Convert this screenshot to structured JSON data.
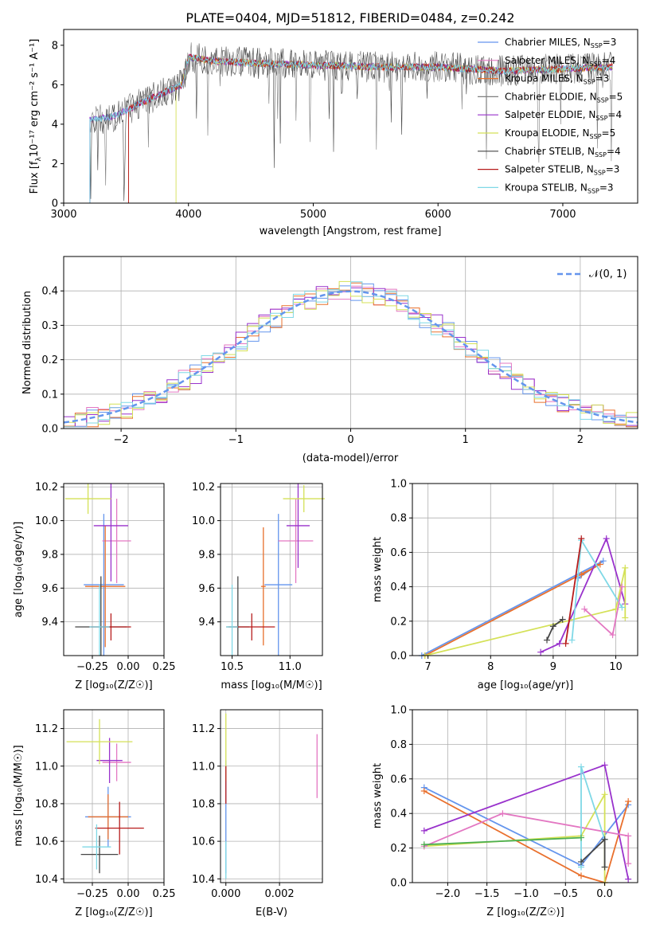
{
  "figure_title": "PLATE=0404, MJD=51812, FIBERID=0484, z=0.242",
  "colors": [
    "#6495ed",
    "#9932cc",
    "#e9702d",
    "#808080",
    "#8e24aa",
    "#d4e157",
    "#454545",
    "#b71c1c",
    "#7fd8e6",
    "#e67ab8",
    "#c7e06a"
  ],
  "legend_entries": [
    {
      "name": "Chabrier MILES, N",
      "sub": "SSP",
      "suffix": "=3",
      "color": "#6495ed"
    },
    {
      "name": "Salpeter MILES, N",
      "sub": "SSP",
      "suffix": "=4",
      "color": "#e377c2"
    },
    {
      "name": "Kroupa MILES, N",
      "sub": "SSP",
      "suffix": "=3",
      "color": "#e9702d"
    },
    {
      "name": "Chabrier ELODIE, N",
      "sub": "SSP",
      "suffix": "=5",
      "color": "#7f7f7f"
    },
    {
      "name": "Salpeter ELODIE, N",
      "sub": "SSP",
      "suffix": "=4",
      "color": "#9932cc"
    },
    {
      "name": "Kroupa ELODIE, N",
      "sub": "SSP",
      "suffix": "=5",
      "color": "#d4e157"
    },
    {
      "name": "Chabrier STELIB, N",
      "sub": "SSP",
      "suffix": "=4",
      "color": "#454545"
    },
    {
      "name": "Salpeter STELIB, N",
      "sub": "SSP",
      "suffix": "=3",
      "color": "#b71c1c"
    },
    {
      "name": "Kroupa STELIB, N",
      "sub": "SSP",
      "suffix": "=3",
      "color": "#7fd8e6"
    }
  ],
  "chart_data": [
    {
      "id": "spectrum",
      "type": "line",
      "title": "PLATE=0404, MJD=51812, FIBERID=0484, z=0.242",
      "xlabel": "wavelength [Angstrom, rest frame]",
      "ylabel": "Flux [f",
      "ylabel_sub": "λ",
      "ylabel_rest": "10⁻¹⁷ erg cm⁻² s⁻¹ A⁻¹]",
      "xlim": [
        3000,
        7600
      ],
      "ylim": [
        0,
        8.8
      ],
      "xticks": [
        "3000",
        "4000",
        "5000",
        "6000",
        "7000"
      ],
      "yticks": [
        "0",
        "2",
        "4",
        "6",
        "8"
      ],
      "grid": false,
      "legend_position": "top-right",
      "continuum_points": [
        [
          3200,
          4.2
        ],
        [
          3400,
          4.4
        ],
        [
          3600,
          5.0
        ],
        [
          3800,
          5.6
        ],
        [
          3950,
          6.0
        ],
        [
          4000,
          7.4
        ],
        [
          4200,
          7.2
        ],
        [
          4500,
          7.1
        ],
        [
          5000,
          7.0
        ],
        [
          5500,
          6.9
        ],
        [
          6000,
          6.9
        ],
        [
          6500,
          6.7
        ],
        [
          7000,
          6.8
        ],
        [
          7400,
          6.9
        ]
      ]
    },
    {
      "id": "residuals",
      "type": "area",
      "xlabel": "(data-model)/error",
      "ylabel": "Normed distribution",
      "xlim": [
        -2.5,
        2.5
      ],
      "ylim": [
        0,
        0.5
      ],
      "xticks": [
        "−2",
        "−1",
        "0",
        "1",
        "2"
      ],
      "yticks": [
        "0.0",
        "0.1",
        "0.2",
        "0.3",
        "0.4"
      ],
      "grid": true,
      "legend_position": "top-right",
      "legend_label": "𝒩(0, 1)",
      "series": [
        {
          "name": "𝒩(0, 1)",
          "style": "dashed",
          "mu": 0,
          "sigma": 1
        }
      ]
    },
    {
      "id": "age-vs-Z",
      "type": "scatter",
      "xlabel": "Z [log₁₀(Z/Z☉)]",
      "ylabel": "age  [log₁₀(age/yr)]",
      "xlim": [
        -0.45,
        0.25
      ],
      "ylim": [
        9.2,
        10.22
      ],
      "xticks": [
        "−0.25",
        "0.00",
        "0.25"
      ],
      "yticks": [
        "9.4",
        "9.6",
        "9.8",
        "10.0",
        "10.2"
      ],
      "grid": true,
      "points": [
        {
          "x": -0.17,
          "y": 9.62,
          "xerr": 0.14,
          "yerr": 0.42,
          "color": "#6495ed"
        },
        {
          "x": -0.08,
          "y": 9.88,
          "xerr": 0.1,
          "yerr": 0.25,
          "color": "#e377c2"
        },
        {
          "x": -0.16,
          "y": 9.61,
          "xerr": 0.14,
          "yerr": 0.36,
          "color": "#e9702d"
        },
        {
          "x": -0.12,
          "y": 9.97,
          "xerr": 0.12,
          "yerr": 0.33,
          "color": "#9932cc"
        },
        {
          "x": -0.28,
          "y": 10.13,
          "xerr": 0.16,
          "yerr": 0.09,
          "color": "#d4e157"
        },
        {
          "x": -0.19,
          "y": 9.37,
          "xerr": 0.18,
          "yerr": 0.3,
          "color": "#454545"
        },
        {
          "x": -0.12,
          "y": 9.37,
          "xerr": 0.14,
          "yerr": 0.08,
          "color": "#b71c1c"
        },
        {
          "x": -0.2,
          "y": 9.37,
          "xerr": 0.07,
          "yerr": 0.25,
          "color": "#7fd8e6"
        }
      ]
    },
    {
      "id": "age-vs-mass",
      "type": "scatter",
      "xlabel": "mass [log₁₀(M/M☉)]",
      "ylabel": "",
      "xlim": [
        10.4,
        11.28
      ],
      "ylim": [
        9.2,
        10.22
      ],
      "xticks": [
        "10.5",
        "11.0"
      ],
      "yticks": [
        "9.4",
        "9.6",
        "9.8",
        "10.0",
        "10.2"
      ],
      "grid": true,
      "points": [
        {
          "x": 10.9,
          "y": 9.62,
          "xerr": 0.12,
          "yerr": 0.42,
          "color": "#6495ed"
        },
        {
          "x": 11.05,
          "y": 9.88,
          "xerr": 0.15,
          "yerr": 0.25,
          "color": "#e377c2"
        },
        {
          "x": 10.77,
          "y": 9.61,
          "xerr": 0.02,
          "yerr": 0.35,
          "color": "#e9702d"
        },
        {
          "x": 11.07,
          "y": 9.97,
          "xerr": 0.1,
          "yerr": 0.25,
          "color": "#9932cc"
        },
        {
          "x": 11.12,
          "y": 10.13,
          "xerr": 0.18,
          "yerr": 0.08,
          "color": "#d4e157"
        },
        {
          "x": 10.55,
          "y": 9.37,
          "xerr": 0.1,
          "yerr": 0.3,
          "color": "#454545"
        },
        {
          "x": 10.67,
          "y": 9.37,
          "xerr": 0.2,
          "yerr": 0.08,
          "color": "#b71c1c"
        },
        {
          "x": 10.5,
          "y": 9.37,
          "xerr": 0.05,
          "yerr": 0.25,
          "color": "#7fd8e6"
        }
      ]
    },
    {
      "id": "massweight-vs-age",
      "type": "line",
      "xlabel": "age  [log₁₀(age/yr)]",
      "ylabel": "mass weight",
      "xlim": [
        6.75,
        10.35
      ],
      "ylim": [
        0,
        1
      ],
      "xticks": [
        "7",
        "8",
        "9",
        "10"
      ],
      "yticks": [
        "0.0",
        "0.2",
        "0.4",
        "0.6",
        "0.8",
        "1.0"
      ],
      "grid": true,
      "series": [
        {
          "color": "#6495ed",
          "x": [
            6.9,
            9.8,
            9.4
          ],
          "y": [
            0.0,
            0.55,
            0.45
          ]
        },
        {
          "color": "#e9702d",
          "x": [
            6.95,
            9.75,
            9.45
          ],
          "y": [
            0.0,
            0.53,
            0.47
          ]
        },
        {
          "color": "#9932cc",
          "x": [
            8.8,
            9.1,
            9.85,
            10.15
          ],
          "y": [
            0.02,
            0.07,
            0.68,
            0.3
          ]
        },
        {
          "color": "#d4e157",
          "x": [
            6.95,
            10.0,
            10.15,
            10.15
          ],
          "y": [
            0.0,
            0.27,
            0.51,
            0.22
          ]
        },
        {
          "color": "#7fd8e6",
          "x": [
            9.3,
            9.45,
            10.1
          ],
          "y": [
            0.09,
            0.67,
            0.28
          ]
        },
        {
          "color": "#b71c1c",
          "x": [
            9.2,
            9.45
          ],
          "y": [
            0.07,
            0.68
          ]
        },
        {
          "color": "#e377c2",
          "x": [
            9.5,
            9.95,
            10.1
          ],
          "y": [
            0.27,
            0.12,
            0.4
          ]
        },
        {
          "color": "#454545",
          "x": [
            8.9,
            9.0,
            9.15
          ],
          "y": [
            0.09,
            0.17,
            0.21
          ]
        }
      ]
    },
    {
      "id": "mass-vs-Z",
      "type": "scatter",
      "xlabel": "Z [log₁₀(Z/Z☉)]",
      "ylabel": "mass [log₁₀(M/M☉)]",
      "xlim": [
        -0.45,
        0.25
      ],
      "ylim": [
        10.38,
        11.3
      ],
      "xticks": [
        "−0.25",
        "0.00",
        "0.25"
      ],
      "yticks": [
        "10.4",
        "10.6",
        "10.8",
        "11.0",
        "11.2"
      ],
      "grid": true,
      "points": [
        {
          "x": -0.14,
          "y": 10.73,
          "xerr": 0.16,
          "yerr": 0.16,
          "color": "#6495ed"
        },
        {
          "x": -0.08,
          "y": 11.02,
          "xerr": 0.1,
          "yerr": 0.1,
          "color": "#e377c2"
        },
        {
          "x": -0.14,
          "y": 10.73,
          "xerr": 0.14,
          "yerr": 0.12,
          "color": "#e9702d"
        },
        {
          "x": -0.13,
          "y": 11.03,
          "xerr": 0.09,
          "yerr": 0.12,
          "color": "#9932cc"
        },
        {
          "x": -0.2,
          "y": 11.13,
          "xerr": 0.23,
          "yerr": 0.12,
          "color": "#d4e157"
        },
        {
          "x": -0.2,
          "y": 10.53,
          "xerr": 0.13,
          "yerr": 0.1,
          "color": "#454545"
        },
        {
          "x": -0.06,
          "y": 10.67,
          "xerr": 0.17,
          "yerr": 0.14,
          "color": "#b71c1c"
        },
        {
          "x": -0.22,
          "y": 10.57,
          "xerr": 0.1,
          "yerr": 0.12,
          "color": "#7fd8e6"
        }
      ]
    },
    {
      "id": "mass-vs-EBV",
      "type": "scatter",
      "xlabel": "E(B-V)",
      "ylabel": "",
      "xlim": [
        -0.0002,
        0.0036
      ],
      "ylim": [
        10.38,
        11.3
      ],
      "xticks": [
        "0.000",
        "0.002"
      ],
      "yticks": [
        "10.4",
        "10.6",
        "10.8",
        "11.0",
        "11.2"
      ],
      "grid": true,
      "points": [
        {
          "x": 0.0,
          "y": 10.73,
          "xerr": 0,
          "yerr": 0.3,
          "color": "#6495ed"
        },
        {
          "x": 0.0034,
          "y": 11.0,
          "xerr": 0,
          "yerr": 0.17,
          "color": "#e377c2"
        },
        {
          "x": 0.0,
          "y": 11.1,
          "xerr": 0,
          "yerr": 0.18,
          "color": "#d4e157"
        },
        {
          "x": 0.0,
          "y": 10.9,
          "xerr": 0,
          "yerr": 0.1,
          "color": "#b71c1c"
        },
        {
          "x": 0.0,
          "y": 10.5,
          "xerr": 0,
          "yerr": 0.1,
          "color": "#7fd8e6"
        }
      ]
    },
    {
      "id": "massweight-vs-Z",
      "type": "line",
      "xlabel": "Z [log₁₀(Z/Z☉)]",
      "ylabel": "mass weight",
      "xlim": [
        -2.45,
        0.42
      ],
      "ylim": [
        0,
        1
      ],
      "xticks": [
        "−2.0",
        "−1.5",
        "−1.0",
        "−0.5",
        "0.0"
      ],
      "yticks": [
        "0.0",
        "0.2",
        "0.4",
        "0.6",
        "0.8",
        "1.0"
      ],
      "grid": true,
      "series": [
        {
          "color": "#6495ed",
          "x": [
            -2.3,
            -0.3,
            0.3
          ],
          "y": [
            0.55,
            0.1,
            0.45
          ]
        },
        {
          "color": "#e9702d",
          "x": [
            -2.3,
            -0.3,
            0.0,
            0.3
          ],
          "y": [
            0.53,
            0.04,
            0.0,
            0.47
          ]
        },
        {
          "color": "#9932cc",
          "x": [
            -2.3,
            0.0,
            0.3
          ],
          "y": [
            0.3,
            0.68,
            0.02
          ]
        },
        {
          "color": "#d4e157",
          "x": [
            -2.3,
            -0.3,
            0.0,
            0.0
          ],
          "y": [
            0.21,
            0.27,
            0.51,
            0.0
          ]
        },
        {
          "color": "#e377c2",
          "x": [
            -2.3,
            -1.3,
            0.3,
            0.3
          ],
          "y": [
            0.21,
            0.4,
            0.27,
            0.11
          ]
        },
        {
          "color": "#7fd8e6",
          "x": [
            -0.3,
            -0.3,
            0.0
          ],
          "y": [
            0.09,
            0.67,
            0.25
          ]
        },
        {
          "color": "#454545",
          "x": [
            -0.3,
            0.0,
            0.0
          ],
          "y": [
            0.12,
            0.25,
            0.09
          ]
        },
        {
          "color": "#4caf50",
          "x": [
            -2.3,
            -0.3
          ],
          "y": [
            0.22,
            0.26
          ]
        }
      ]
    }
  ]
}
